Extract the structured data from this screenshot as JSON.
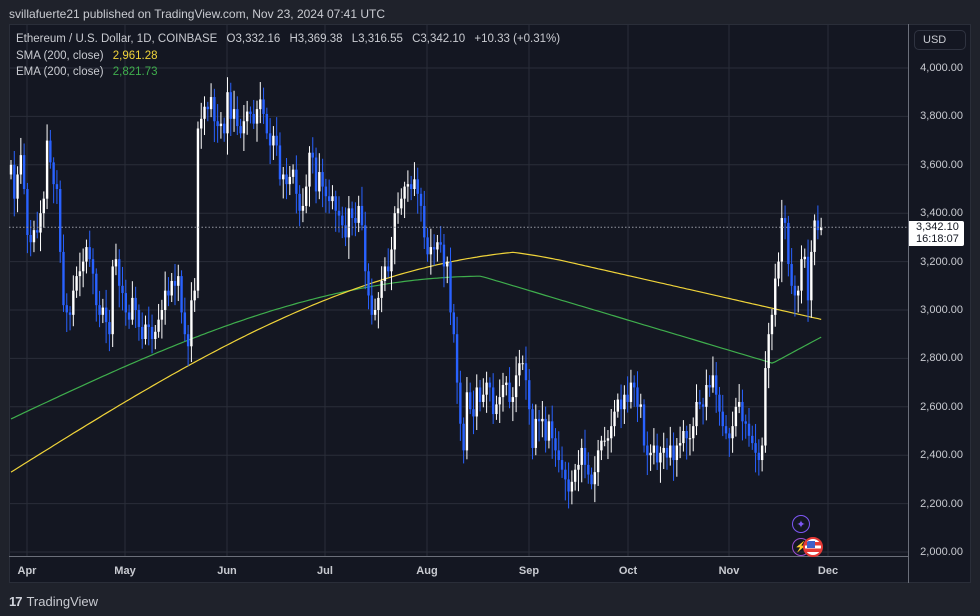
{
  "publisher": "svillafuerte21 published on TradingView.com, Nov 23, 2024 07:41 UTC",
  "legend": {
    "symbol": "Ethereum / U.S. Dollar, 1D, COINBASE",
    "open": "O3,332.16",
    "high": "H3,369.38",
    "low": "L3,316.55",
    "close": "C3,342.10",
    "change": "+10.33 (+0.31%)",
    "sma_label": "SMA (200, close)",
    "sma_value": "2,961.28",
    "ema_label": "EMA (200, close)",
    "ema_value": "2,821.73"
  },
  "price_axis": {
    "currency_button": "USD",
    "ticks": [
      "4,000.00",
      "3,800.00",
      "3,600.00",
      "3,400.00",
      "3,200.00",
      "3,000.00",
      "2,800.00",
      "2,600.00",
      "2,400.00",
      "2,200.00",
      "2,000.00"
    ],
    "last_price": "3,342.10",
    "countdown": "16:18:07"
  },
  "time_axis": {
    "months": [
      "Apr",
      "May",
      "Jun",
      "Jul",
      "Aug",
      "Sep",
      "Oct",
      "Nov",
      "Dec"
    ]
  },
  "footer": {
    "brand": "TradingView",
    "logo_glyph": "17"
  },
  "colors": {
    "up": "#ffffff",
    "down": "#2962ff",
    "sma": "#f0d43a",
    "ema": "#3fae4d",
    "grid": "#2a2e39",
    "bg": "#141722"
  },
  "events": [
    {
      "type": "star-event-icon",
      "color": "#7e57f5"
    },
    {
      "type": "flag-us-event-icon",
      "color": "#e53935"
    }
  ],
  "chart_data": {
    "type": "candlestick",
    "title": "Ethereum / U.S. Dollar, 1D, COINBASE",
    "xlabel": "",
    "ylabel": "USD",
    "ylim": [
      1990,
      4080
    ],
    "x_range": [
      "2024-03-27",
      "2024-12-05"
    ],
    "grid": true,
    "last": {
      "open": 3332.16,
      "high": 3369.38,
      "low": 3316.55,
      "close": 3342.1,
      "change": 10.33,
      "change_pct": 0.31
    },
    "closes_approx": [
      3600,
      3460,
      3560,
      3640,
      3500,
      3310,
      3280,
      3330,
      3320,
      3400,
      3460,
      3700,
      3610,
      3520,
      3500,
      3240,
      3020,
      2990,
      2980,
      3080,
      3140,
      3160,
      3200,
      3260,
      3210,
      3150,
      3020,
      2980,
      3010,
      2950,
      2900,
      3180,
      3210,
      3100,
      3070,
      2990,
      2960,
      3050,
      3000,
      2930,
      2880,
      2940,
      2930,
      2880,
      2910,
      2960,
      3000,
      3080,
      3060,
      3120,
      3100,
      3140,
      2990,
      2900,
      2850,
      3040,
      3080,
      3750,
      3790,
      3840,
      3830,
      3880,
      3780,
      3760,
      3770,
      3730,
      3900,
      3790,
      3830,
      3760,
      3730,
      3780,
      3820,
      3810,
      3770,
      3830,
      3870,
      3810,
      3730,
      3680,
      3720,
      3680,
      3540,
      3560,
      3520,
      3550,
      3580,
      3480,
      3410,
      3430,
      3510,
      3650,
      3630,
      3490,
      3570,
      3510,
      3470,
      3450,
      3470,
      3410,
      3390,
      3350,
      3300,
      3420,
      3380,
      3360,
      3430,
      3350,
      3160,
      3060,
      2980,
      3000,
      3050,
      3120,
      3180,
      3160,
      3250,
      3400,
      3420,
      3460,
      3510,
      3520,
      3500,
      3540,
      3480,
      3430,
      3300,
      3230,
      3260,
      3250,
      3280,
      3270,
      3180,
      3200,
      2990,
      2900,
      2700,
      2530,
      2420,
      2660,
      2590,
      2560,
      2680,
      2620,
      2650,
      2700,
      2680,
      2570,
      2610,
      2640,
      2690,
      2700,
      2620,
      2640,
      2730,
      2780,
      2780,
      2710,
      2590,
      2430,
      2550,
      2540,
      2550,
      2460,
      2540,
      2470,
      2420,
      2380,
      2340,
      2300,
      2250,
      2290,
      2340,
      2360,
      2430,
      2360,
      2320,
      2280,
      2330,
      2420,
      2460,
      2460,
      2470,
      2520,
      2580,
      2630,
      2590,
      2650,
      2620,
      2700,
      2680,
      2600,
      2610,
      2440,
      2400,
      2410,
      2440,
      2370,
      2410,
      2430,
      2390,
      2440,
      2380,
      2440,
      2450,
      2500,
      2470,
      2470,
      2520,
      2620,
      2610,
      2600,
      2690,
      2680,
      2730,
      2650,
      2580,
      2520,
      2490,
      2470,
      2520,
      2600,
      2620,
      2540,
      2530,
      2480,
      2450,
      2410,
      2380,
      2440,
      2760,
      2900,
      2980,
      3130,
      3200,
      3380,
      3360,
      3190,
      3100,
      3060,
      3080,
      3210,
      3220,
      3040,
      3240,
      3370,
      3330,
      3342
    ]
  }
}
